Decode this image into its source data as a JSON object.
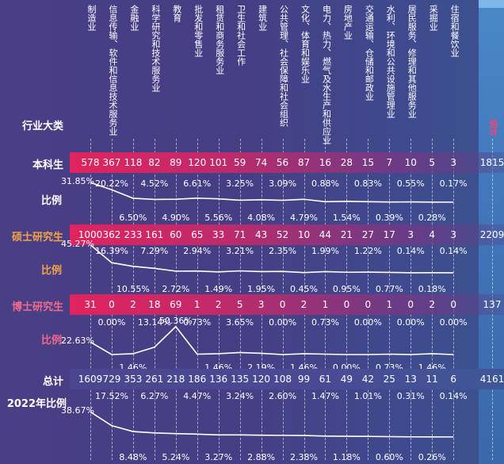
{
  "chart_data": {
    "type": "table",
    "corner_label": "行业大类",
    "categories": [
      "制造业",
      "信息传输、软件和信息技术服务业",
      "金融业",
      "科学研究和技术服务业",
      "教育",
      "批发和零售业",
      "租赁和商务服务业",
      "卫生和社会工作",
      "建筑业",
      "公共管理、社会保障和社会组织",
      "文化、体育和娱乐业",
      "电力、热力、燃气及水生产和供应业",
      "房地产业",
      "交通运输、仓储和邮政业",
      "水利、环境和公共设施管理业",
      "居民服务、修理和其他服务业",
      "采掘业",
      "住宿和餐饮业",
      "总计"
    ],
    "rows": [
      {
        "label": "本科生",
        "counts": [
          578,
          367,
          118,
          82,
          89,
          120,
          101,
          59,
          74,
          56,
          87,
          16,
          28,
          15,
          7,
          10,
          5,
          3,
          1815
        ],
        "ratio_label": "比例",
        "ratios": [
          "31.85%",
          "20.22%",
          "6.50%",
          "4.52%",
          "4.90%",
          "6.61%",
          "5.56%",
          "3.25%",
          "4.08%",
          "3.09%",
          "4.79%",
          "0.88%",
          "1.54%",
          "0.83%",
          "0.39%",
          "0.55%",
          "0.28%",
          "0.17%"
        ],
        "ratio_values": [
          31.85,
          20.22,
          6.5,
          4.52,
          4.9,
          6.61,
          5.56,
          3.25,
          4.08,
          3.09,
          4.79,
          0.88,
          1.54,
          0.83,
          0.39,
          0.55,
          0.28,
          0.17
        ]
      },
      {
        "label": "硕士研究生",
        "counts": [
          1000,
          362,
          233,
          161,
          60,
          65,
          33,
          71,
          43,
          52,
          10,
          44,
          21,
          27,
          17,
          3,
          4,
          3,
          2209
        ],
        "ratio_label": "比例",
        "ratios": [
          "45.27%",
          "16.39%",
          "10.55%",
          "7.29%",
          "2.72%",
          "2.94%",
          "1.49%",
          "3.21%",
          "1.95%",
          "2.35%",
          "0.45%",
          "1.99%",
          "0.95%",
          "1.22%",
          "0.77%",
          "0.14%",
          "0.18%",
          "0.14%"
        ],
        "ratio_values": [
          45.27,
          16.39,
          10.55,
          7.29,
          2.72,
          2.94,
          1.49,
          3.21,
          1.95,
          2.35,
          0.45,
          1.99,
          0.95,
          1.22,
          0.77,
          0.14,
          0.18,
          0.14
        ]
      },
      {
        "label": "博士研究生",
        "counts": [
          31,
          0,
          2,
          18,
          69,
          1,
          2,
          5,
          3,
          0,
          2,
          1,
          0,
          0,
          1,
          0,
          2,
          0,
          137
        ],
        "ratio_label": "比例",
        "ratios": [
          "22.63%",
          "0.00%",
          "1.46%",
          "13.14%",
          "50.36%",
          "0.73%",
          "1.46%",
          "3.65%",
          "2.19%",
          "0.00%",
          "1.46%",
          "0.73%",
          "0.00%",
          "0.00%",
          "0.73%",
          "0.00%",
          "1.46%",
          "0.00%"
        ],
        "ratio_values": [
          22.63,
          0.0,
          1.46,
          13.14,
          50.36,
          0.73,
          1.46,
          3.65,
          2.19,
          0.0,
          1.46,
          0.73,
          0.0,
          0.0,
          0.73,
          0.0,
          1.46,
          0.0
        ]
      },
      {
        "label": "总计",
        "counts": [
          1609,
          729,
          353,
          261,
          218,
          186,
          136,
          135,
          120,
          108,
          99,
          61,
          49,
          42,
          25,
          13,
          11,
          6,
          4161
        ],
        "ratio_label": "2022年比例",
        "ratios": [
          "38.67%",
          "17.52%",
          "8.48%",
          "6.27%",
          "5.24%",
          "4.47%",
          "3.27%",
          "3.24%",
          "2.88%",
          "2.60%",
          "2.38%",
          "1.47%",
          "1.18%",
          "1.01%",
          "0.60%",
          "0.31%",
          "0.26%",
          "0.14%"
        ],
        "ratio_values": [
          38.67,
          17.52,
          8.48,
          6.27,
          5.24,
          4.47,
          3.27,
          3.24,
          2.88,
          2.6,
          2.38,
          1.47,
          1.18,
          1.01,
          0.6,
          0.31,
          0.26,
          0.14
        ]
      }
    ],
    "colors": {
      "band": "#e0245f",
      "label_bachelor": "#ffffff",
      "label_master": "#f4a24a",
      "label_master_ratio": "#f4a24a",
      "label_doctor": "#f06a8c",
      "label_doctor_ratio": "#f06a8c",
      "total_header": "#ff3f6f",
      "line": "#ffffff"
    }
  }
}
